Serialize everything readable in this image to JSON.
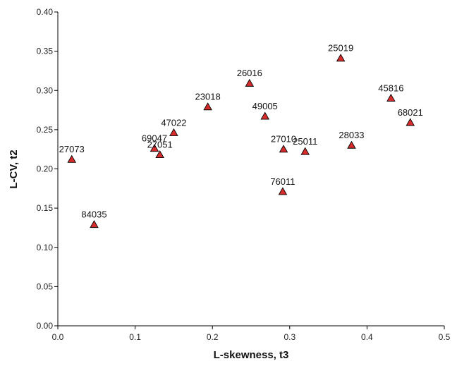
{
  "chart_data": {
    "type": "scatter",
    "title": "",
    "xlabel": "L-skewness, t3",
    "ylabel": "L-CV, t2",
    "xlim": [
      0,
      0.5
    ],
    "ylim": [
      0,
      0.4
    ],
    "x_ticks": [
      "0.0",
      "0.1",
      "0.2",
      "0.3",
      "0.4",
      "0.5"
    ],
    "y_ticks": [
      "0.00",
      "0.05",
      "0.10",
      "0.15",
      "0.20",
      "0.25",
      "0.30",
      "0.35",
      "0.40"
    ],
    "grid": false,
    "marker": "triangle",
    "marker_color": "#d62c2c",
    "points": [
      {
        "label": "25019",
        "x": 0.366,
        "y": 0.341
      },
      {
        "label": "26016",
        "x": 0.248,
        "y": 0.309
      },
      {
        "label": "45816",
        "x": 0.431,
        "y": 0.29
      },
      {
        "label": "23018",
        "x": 0.194,
        "y": 0.279
      },
      {
        "label": "49005",
        "x": 0.268,
        "y": 0.267
      },
      {
        "label": "68021",
        "x": 0.456,
        "y": 0.259
      },
      {
        "label": "47022",
        "x": 0.15,
        "y": 0.246
      },
      {
        "label": "28033",
        "x": 0.38,
        "y": 0.23
      },
      {
        "label": "69047",
        "x": 0.125,
        "y": 0.226
      },
      {
        "label": "27010",
        "x": 0.292,
        "y": 0.225
      },
      {
        "label": "25011",
        "x": 0.32,
        "y": 0.222
      },
      {
        "label": "27051",
        "x": 0.132,
        "y": 0.218
      },
      {
        "label": "27073",
        "x": 0.018,
        "y": 0.212
      },
      {
        "label": "76011",
        "x": 0.291,
        "y": 0.171
      },
      {
        "label": "84035",
        "x": 0.047,
        "y": 0.129
      }
    ]
  }
}
